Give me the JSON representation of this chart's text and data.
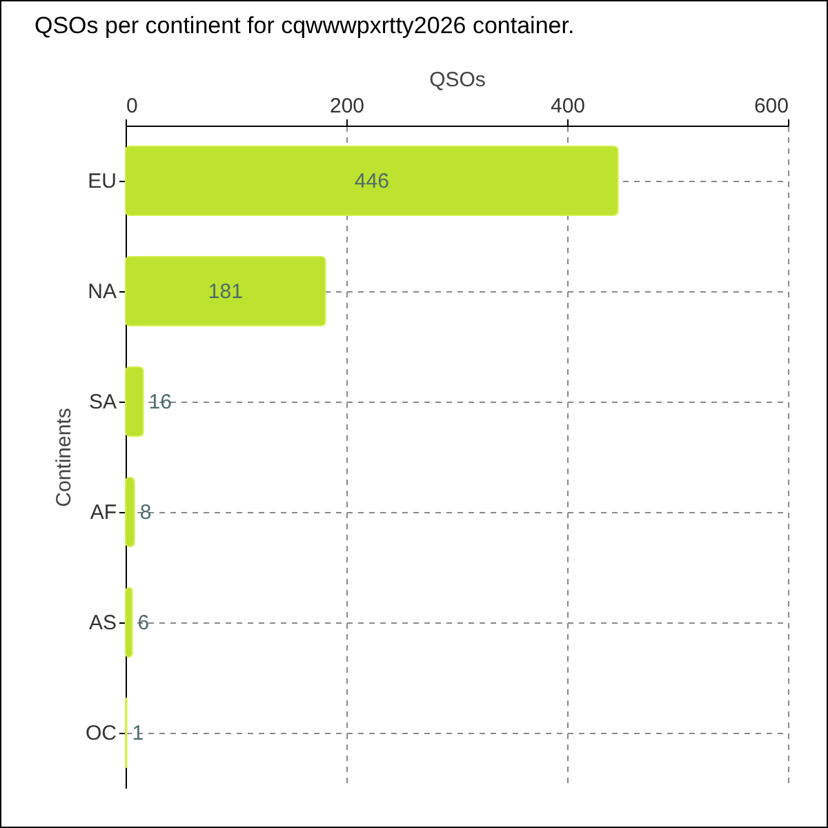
{
  "chart_data": {
    "type": "bar",
    "title": "QSOs per continent for cqwwwpxrtty2026 container.",
    "xlabel": "QSOs",
    "ylabel": "Continents",
    "orientation": "horizontal",
    "categories": [
      "EU",
      "NA",
      "SA",
      "AF",
      "AS",
      "OC"
    ],
    "values": [
      446,
      181,
      16,
      8,
      6,
      1
    ],
    "color": "#bde22f",
    "xlim": [
      0,
      600
    ],
    "xticks": [
      0,
      200,
      400,
      600
    ],
    "grid": true,
    "data_labels": true
  }
}
